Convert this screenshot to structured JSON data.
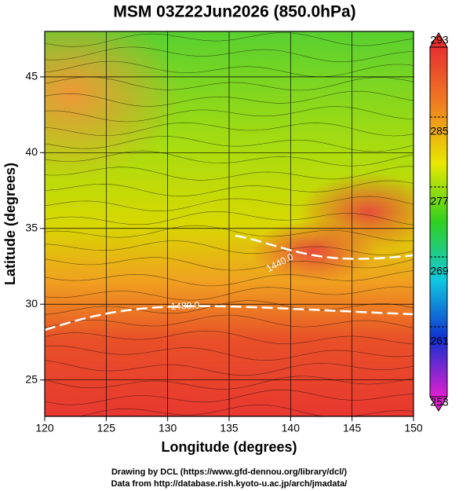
{
  "chart_data": {
    "type": "map",
    "title": "MSM 03Z22Jun2026 (850.0hPa)",
    "xlabel": "Longitude (degrees)",
    "ylabel": "Latitude  (degrees)",
    "xlim": [
      120,
      150
    ],
    "ylim": [
      22.6,
      48
    ],
    "xticks": [
      120,
      125,
      130,
      135,
      140,
      145,
      150
    ],
    "yticks": [
      25,
      30,
      35,
      40,
      45
    ],
    "grid": true,
    "contour_labels": [
      {
        "value": 1440,
        "label": "1440.0"
      },
      {
        "value": 1480,
        "label": "1480.0"
      }
    ],
    "colorbar": {
      "lim": [
        253,
        293
      ],
      "ticks": [
        253,
        261,
        269,
        277,
        285,
        293
      ],
      "colors": [
        "#e020d0",
        "#1030d0",
        "#10c8e0",
        "#30d020",
        "#e8e800",
        "#f08020",
        "#e83030"
      ]
    },
    "credits": [
      "Drawing by DCL (https://www.gfd-dennou.org/library/dcl/)",
      "Data from http://database.rish.kyoto-u.ac.jp/arch/jmadata/"
    ]
  }
}
